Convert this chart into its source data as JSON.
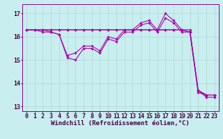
{
  "background_color": "#c8eef0",
  "line_color": "#aa00aa",
  "grid_color": "#b0d8d0",
  "xlabel": "Windchill (Refroidissement éolien,°C)",
  "xlabel_fontsize": 6.5,
  "tick_fontsize": 6,
  "ylim": [
    12.8,
    17.4
  ],
  "xlim": [
    -0.5,
    23.5
  ],
  "yticks": [
    13,
    14,
    15,
    16,
    17
  ],
  "xticks": [
    0,
    1,
    2,
    3,
    4,
    5,
    6,
    7,
    8,
    9,
    10,
    11,
    12,
    13,
    14,
    15,
    16,
    17,
    18,
    19,
    20,
    21,
    22,
    23
  ],
  "series": [
    [
      16.3,
      16.3,
      16.2,
      16.2,
      16.1,
      15.1,
      15.0,
      15.5,
      15.5,
      15.3,
      15.9,
      15.8,
      16.2,
      16.2,
      16.5,
      16.6,
      16.2,
      16.8,
      16.6,
      16.2,
      16.2,
      13.6,
      13.5,
      13.5
    ],
    [
      16.3,
      16.3,
      16.3,
      16.2,
      16.1,
      15.2,
      15.3,
      15.6,
      15.6,
      15.4,
      16.0,
      15.9,
      16.3,
      16.3,
      16.6,
      16.7,
      16.3,
      17.0,
      16.7,
      16.3,
      16.3,
      13.7,
      13.5,
      13.5
    ],
    [
      16.3,
      16.3,
      16.3,
      16.3,
      16.3,
      16.3,
      16.3,
      16.3,
      16.3,
      16.3,
      16.3,
      16.3,
      16.3,
      16.3,
      16.3,
      16.3,
      16.3,
      16.3,
      16.3,
      16.3,
      16.2,
      13.7,
      13.5,
      13.5
    ],
    [
      16.3,
      16.3,
      16.3,
      16.3,
      16.3,
      16.3,
      16.3,
      16.3,
      16.3,
      16.3,
      16.3,
      16.3,
      16.3,
      16.3,
      16.3,
      16.3,
      16.3,
      16.3,
      16.3,
      16.3,
      16.2,
      13.7,
      13.4,
      13.4
    ]
  ]
}
